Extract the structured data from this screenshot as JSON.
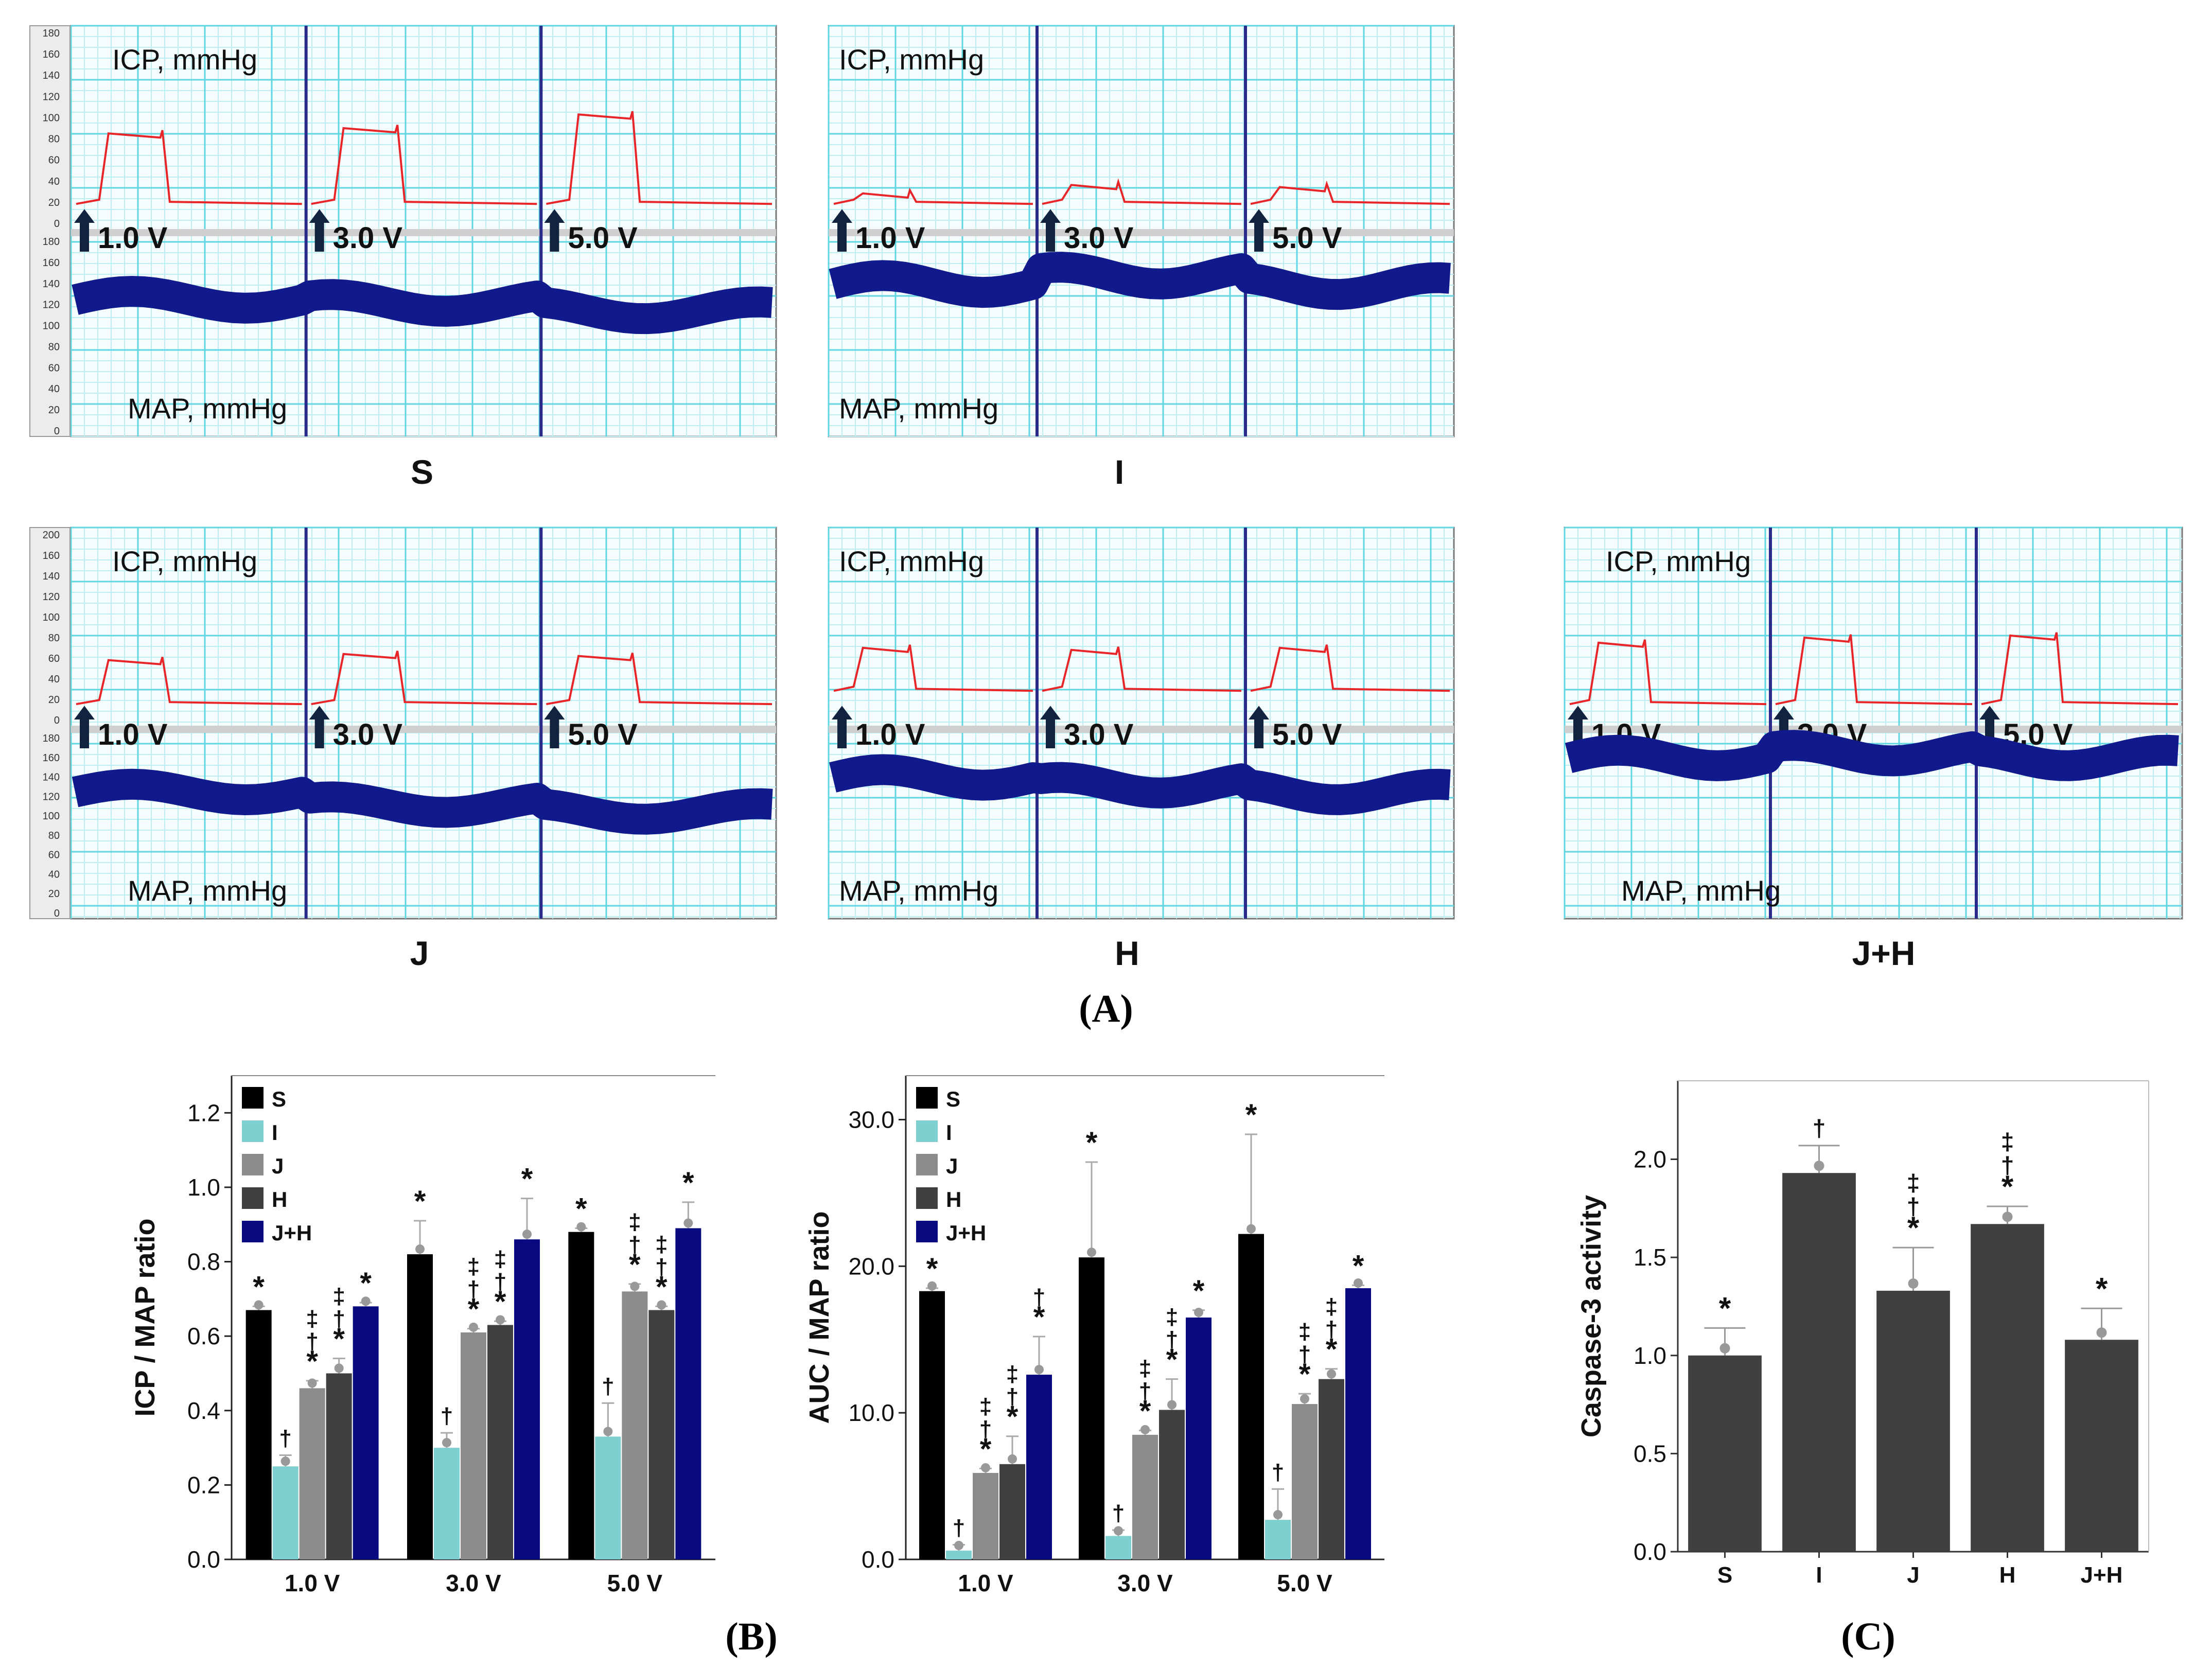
{
  "colors": {
    "grid_major": "#5fd6e0",
    "grid_minor": "#bfeef2",
    "panel_bg": "#f5fdfe",
    "icp_trace": "#e8262a",
    "map_trace": "#101a8c",
    "divider": "#2a2a8a",
    "S": "#000000",
    "I": "#7ecfd0",
    "J": "#8c8c8c",
    "H": "#404040",
    "JH": "#0a0a80",
    "caspase_bar": "#404040"
  },
  "panel_a": {
    "label": "(A)",
    "icp_label": "ICP, mmHg",
    "map_label": "MAP, mmHg",
    "stim_labels": [
      "1.0 V",
      "3.0 V",
      "5.0 V"
    ],
    "axis_ticks": [
      "180",
      "160",
      "140",
      "120",
      "100",
      "80",
      "60",
      "40",
      "20",
      "0"
    ],
    "j_top_tick": "200",
    "panels": [
      {
        "group": "S",
        "icp_peak": [
          85,
          90,
          103
        ],
        "icp_base": 18,
        "map_level": [
          125,
          122,
          115
        ]
      },
      {
        "group": "I",
        "icp_peak": [
          28,
          36,
          34
        ],
        "icp_base": 18,
        "map_level": [
          140,
          148,
          138
        ]
      },
      {
        "group": "J",
        "icp_peak": [
          58,
          64,
          62
        ],
        "icp_base": 15,
        "map_level": [
          125,
          112,
          105
        ]
      },
      {
        "group": "H",
        "icp_peak": [
          70,
          68,
          70
        ],
        "icp_base": 28,
        "map_level": [
          140,
          132,
          125
        ]
      },
      {
        "group": "J+H",
        "icp_peak": [
          75,
          80,
          82
        ],
        "icp_base": 15,
        "map_level": [
          160,
          165,
          160
        ]
      }
    ]
  },
  "panel_b_label": "(B)",
  "panel_c_label": "(C)",
  "chart_data": [
    {
      "id": "icp_map",
      "type": "bar",
      "ylabel": "ICP / MAP ratio",
      "categories": [
        "1.0 V",
        "3.0 V",
        "5.0 V"
      ],
      "ylim": [
        0,
        1.3
      ],
      "yticks": [
        "0.0",
        "0.2",
        "0.4",
        "0.6",
        "0.8",
        "1.0",
        "1.2"
      ],
      "legend": [
        "S",
        "I",
        "J",
        "H",
        "J+H"
      ],
      "series": [
        {
          "name": "S",
          "values": [
            0.67,
            0.82,
            0.88
          ],
          "err": [
            0.01,
            0.09,
            0.01
          ],
          "marks": [
            "*",
            "*",
            "*"
          ]
        },
        {
          "name": "I",
          "values": [
            0.25,
            0.3,
            0.33
          ],
          "err": [
            0.03,
            0.04,
            0.09
          ],
          "marks": [
            "†",
            "†",
            "†"
          ]
        },
        {
          "name": "J",
          "values": [
            0.46,
            0.61,
            0.72
          ],
          "err": [
            0.02,
            0.01,
            0.02
          ],
          "marks": [
            "‡†*",
            "‡†*",
            "‡†*"
          ]
        },
        {
          "name": "H",
          "values": [
            0.5,
            0.63,
            0.67
          ],
          "err": [
            0.04,
            0.01,
            0.01
          ],
          "marks": [
            "‡†*",
            "‡†*",
            "‡†*"
          ]
        },
        {
          "name": "J+H",
          "values": [
            0.68,
            0.86,
            0.89
          ],
          "err": [
            0.01,
            0.11,
            0.07
          ],
          "marks": [
            "*",
            "*",
            "*"
          ]
        }
      ]
    },
    {
      "id": "auc_map",
      "type": "bar",
      "ylabel": "AUC / MAP ratio",
      "categories": [
        "1.0 V",
        "3.0 V",
        "5.0 V"
      ],
      "ylim": [
        0,
        33
      ],
      "yticks": [
        "0.0",
        "10.0",
        "20.0",
        "30.0"
      ],
      "legend": [
        "S",
        "I",
        "J",
        "H",
        "J+H"
      ],
      "series": [
        {
          "name": "S",
          "values": [
            18.3,
            20.6,
            22.2
          ],
          "err": [
            0.2,
            6.5,
            6.8
          ],
          "marks": [
            "*",
            "*",
            "*"
          ]
        },
        {
          "name": "I",
          "values": [
            0.6,
            1.6,
            2.7
          ],
          "err": [
            0.4,
            0.4,
            2.1
          ],
          "marks": [
            "†",
            "†",
            "†"
          ]
        },
        {
          "name": "J",
          "values": [
            5.9,
            8.5,
            10.6
          ],
          "err": [
            0.3,
            0.3,
            0.7
          ],
          "marks": [
            "‡†*",
            "‡†*",
            "‡†*"
          ]
        },
        {
          "name": "H",
          "values": [
            6.5,
            10.2,
            12.3
          ],
          "err": [
            1.9,
            2.1,
            0.7
          ],
          "marks": [
            "‡†*",
            "‡†*",
            "‡†*"
          ]
        },
        {
          "name": "J+H",
          "values": [
            12.6,
            16.5,
            18.5
          ],
          "err": [
            2.6,
            0.5,
            0.2
          ],
          "marks": [
            "†*",
            "*",
            "*"
          ]
        }
      ]
    },
    {
      "id": "caspase",
      "type": "bar",
      "ylabel": "Caspase-3 activity",
      "categories": [
        "S",
        "I",
        "J",
        "H",
        "J+H"
      ],
      "ylim": [
        0,
        2.4
      ],
      "yticks": [
        "0.0",
        "0.5",
        "1.0",
        "1.5",
        "2.0"
      ],
      "values": [
        1.0,
        1.93,
        1.33,
        1.67,
        1.08
      ],
      "err": [
        0.14,
        0.14,
        0.22,
        0.09,
        0.16
      ],
      "marks": [
        "*",
        "†",
        "‡†*",
        "‡†*",
        "*"
      ]
    }
  ]
}
